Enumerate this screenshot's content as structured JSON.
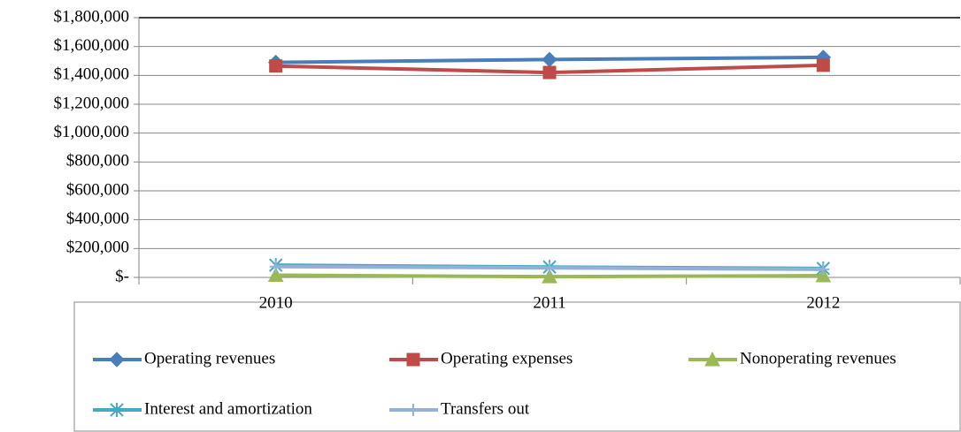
{
  "chart_data": {
    "type": "line",
    "categories": [
      "2010",
      "2011",
      "2012"
    ],
    "series": [
      {
        "name": "Operating revenues",
        "color": "#4a7ebb",
        "marker": "diamond",
        "values": [
          1490000,
          1510000,
          1525000
        ]
      },
      {
        "name": "Operating expenses",
        "color": "#be4b48",
        "marker": "square",
        "values": [
          1465000,
          1420000,
          1470000
        ]
      },
      {
        "name": "Nonoperating revenues",
        "color": "#98b954",
        "marker": "triangle",
        "values": [
          15000,
          5000,
          12000
        ]
      },
      {
        "name": "Interest and amortization",
        "color": "#46aac5",
        "marker": "asterisk",
        "values": [
          85000,
          72000,
          62000
        ]
      },
      {
        "name": "Transfers out",
        "color": "#93b1d6",
        "marker": "plus",
        "values": [
          75000,
          66000,
          56000
        ]
      }
    ],
    "ylim": [
      0,
      1800000
    ],
    "yticks": [
      {
        "value": 0,
        "label": "$-"
      },
      {
        "value": 200000,
        "label": "$200,000"
      },
      {
        "value": 400000,
        "label": "$400,000"
      },
      {
        "value": 600000,
        "label": "$600,000"
      },
      {
        "value": 800000,
        "label": "$800,000"
      },
      {
        "value": 1000000,
        "label": "$1,000,000"
      },
      {
        "value": 1200000,
        "label": "$1,200,000"
      },
      {
        "value": 1400000,
        "label": "$1,400,000"
      },
      {
        "value": 1600000,
        "label": "$1,600,000"
      },
      {
        "value": 1800000,
        "label": "$1,800,000"
      }
    ],
    "grid": true
  }
}
